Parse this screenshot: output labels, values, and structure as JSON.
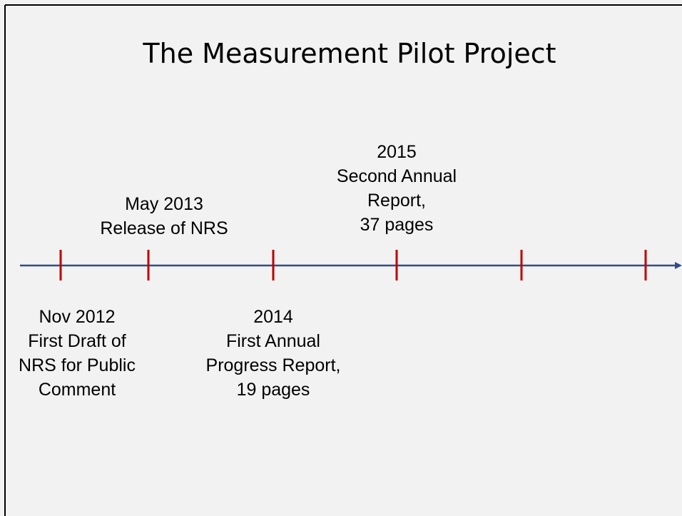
{
  "title": "The Measurement Pilot Project",
  "events": [
    {
      "lines": [
        "Nov 2012",
        "First Draft of",
        "NRS for Public",
        "Comment"
      ]
    },
    {
      "lines": [
        "May 2013",
        "Release of NRS"
      ]
    },
    {
      "lines": [
        "2014",
        "First Annual",
        "Progress Report,",
        "19 pages"
      ]
    },
    {
      "lines": [
        "2015",
        "Second Annual",
        "Report,",
        "37 pages"
      ]
    }
  ]
}
